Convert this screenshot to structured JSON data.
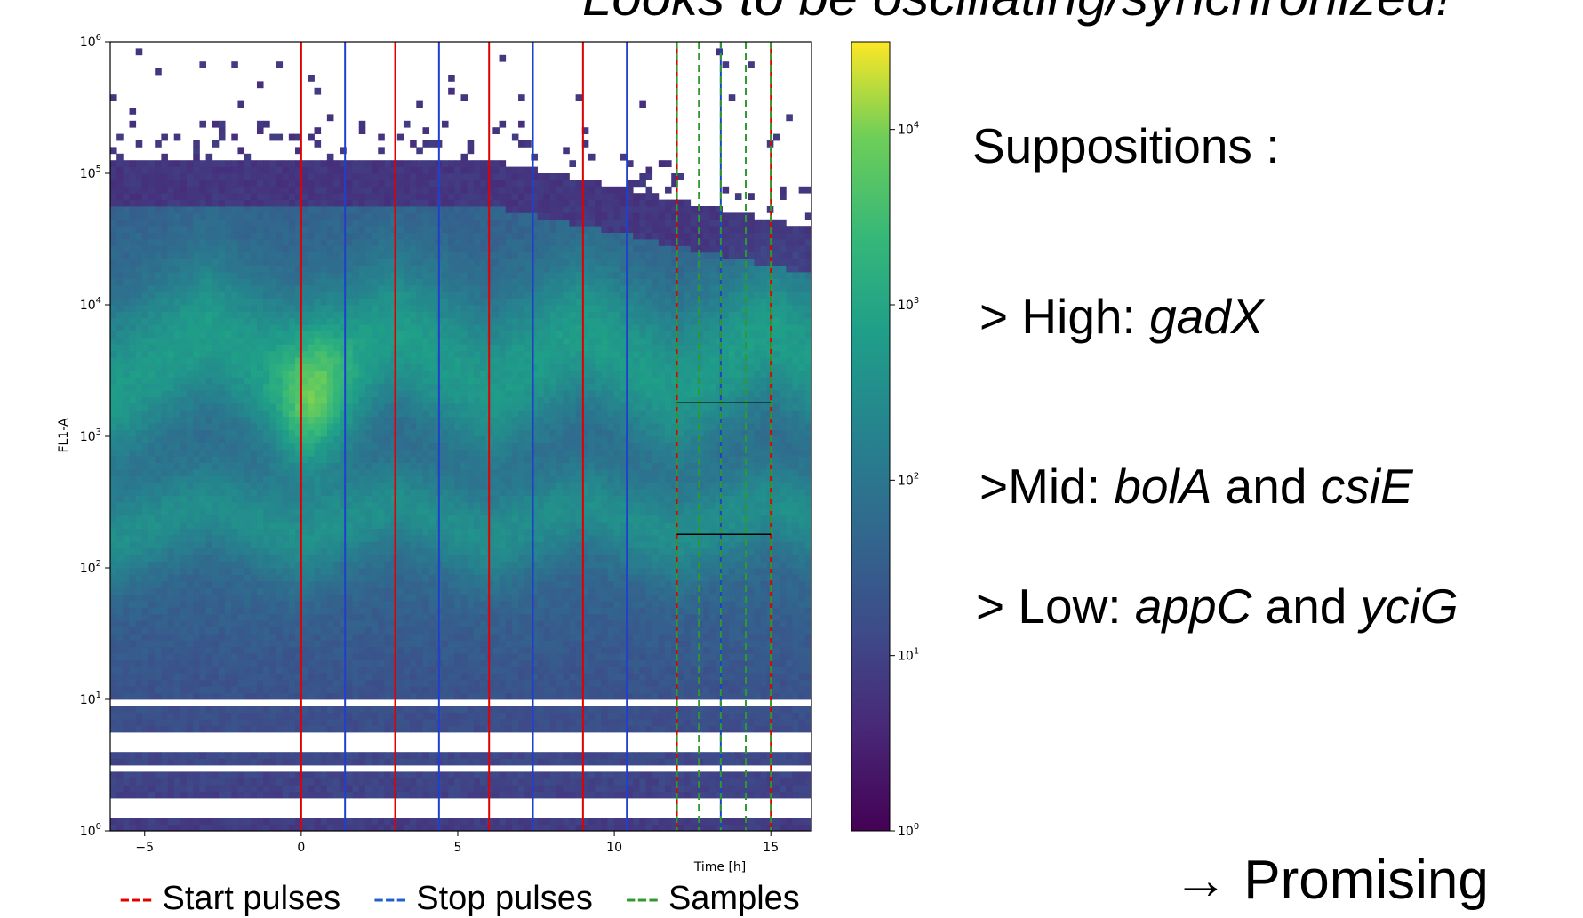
{
  "page_title": "Looks to be oscillating/synchronized!",
  "chart_data": {
    "type": "heatmap",
    "xlabel": "Time [h]",
    "ylabel": "FL1-A",
    "xlim": [
      -6.1,
      16.3
    ],
    "ylim_log10": [
      0,
      6
    ],
    "y_scale": "log",
    "x_ticks": [
      -5,
      0,
      5,
      10,
      15
    ],
    "y_ticks": [
      "10^0",
      "10^1",
      "10^2",
      "10^3",
      "10^4",
      "10^5",
      "10^6"
    ],
    "colorbar": {
      "scale": "log",
      "range_log10": [
        0,
        4.5
      ],
      "ticks": [
        "10^0",
        "10^1",
        "10^2",
        "10^3",
        "10^4"
      ],
      "colormap": "viridis"
    },
    "start_pulses_h": [
      0,
      3,
      6,
      9,
      12,
      15
    ],
    "stop_pulses_h": [
      1.4,
      4.4,
      7.4,
      10.4,
      13.4
    ],
    "samples_h": [
      12,
      12.7,
      13.4,
      14.2,
      15
    ],
    "reference_lines": [
      {
        "y": 1800,
        "x_range": [
          12,
          15
        ]
      },
      {
        "y": 180,
        "x_range": [
          12,
          15
        ]
      }
    ],
    "legend": [
      {
        "label": "Start pulses",
        "color": "#e00000"
      },
      {
        "label": "Stop pulses",
        "color": "#1f5fd0"
      },
      {
        "label": "Samples",
        "color": "#2e9a2e"
      }
    ]
  },
  "legend_text": {
    "start": "--- Start pulses",
    "stop": "--- Stop pulses",
    "samples": "--- Samples"
  },
  "suppositions": {
    "heading": "Suppositions :",
    "high_prefix": "> High: ",
    "high_gene": "gadX",
    "mid_prefix": ">Mid: ",
    "mid_gene1": "bolA",
    "mid_and": " and ",
    "mid_gene2": "csiE",
    "low_prefix": "> Low: ",
    "low_gene1": "appC",
    "low_and": " and ",
    "low_gene2": "yciG"
  },
  "conclusion": "→ Promising"
}
